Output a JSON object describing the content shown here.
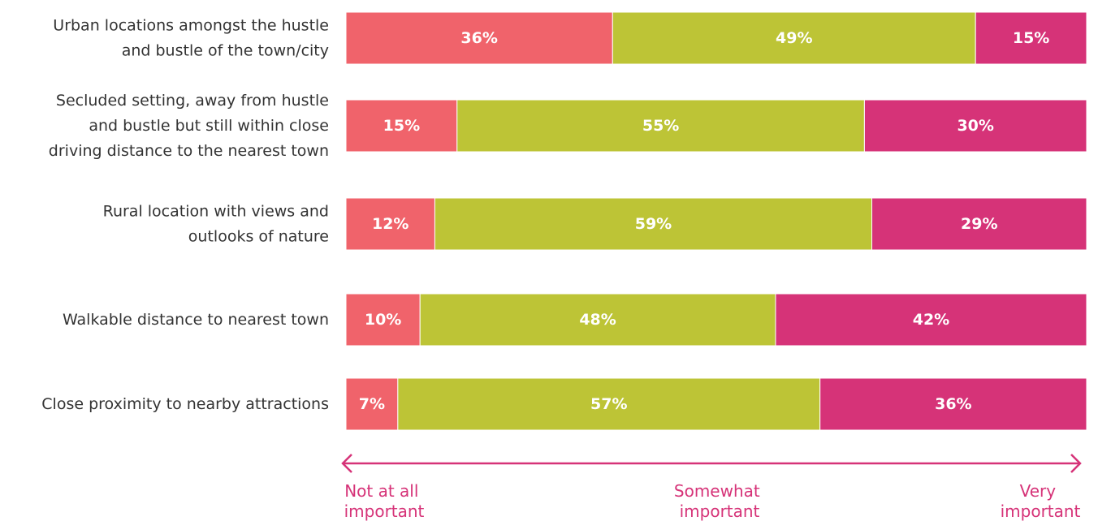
{
  "chart_data": {
    "type": "bar",
    "orientation": "horizontal",
    "stacked": true,
    "categories": [
      [
        "Urban locations amongst the hustle",
        "and bustle of the town/city"
      ],
      [
        "Secluded setting, away from hustle",
        "and bustle but still within close",
        "driving distance to the nearest town"
      ],
      [
        "Rural location with views and",
        "outlooks of nature"
      ],
      [
        "Walkable distance to nearest town"
      ],
      [
        "Close proximity to nearby attractions"
      ]
    ],
    "series": [
      {
        "values": [
          36,
          15,
          12,
          10,
          7
        ],
        "labels": [
          "36%",
          "15%",
          "12%",
          "10%",
          "7%"
        ],
        "color": "#F0636B"
      },
      {
        "values": [
          49,
          55,
          59,
          48,
          57
        ],
        "labels": [
          "49%",
          "55%",
          "59%",
          "48%",
          "57%"
        ],
        "color": "#BDC436"
      },
      {
        "values": [
          15,
          30,
          29,
          42,
          36
        ],
        "labels": [
          "15%",
          "30%",
          "29%",
          "42%",
          "36%"
        ],
        "color": "#D63378"
      }
    ],
    "scale": {
      "left": [
        "Not at all",
        "important"
      ],
      "middle": [
        "Somewhat",
        "important"
      ],
      "right": [
        "Very",
        "important"
      ],
      "color": "#D63378"
    },
    "xlim": [
      0,
      100
    ],
    "grid": false,
    "legend": "none"
  }
}
